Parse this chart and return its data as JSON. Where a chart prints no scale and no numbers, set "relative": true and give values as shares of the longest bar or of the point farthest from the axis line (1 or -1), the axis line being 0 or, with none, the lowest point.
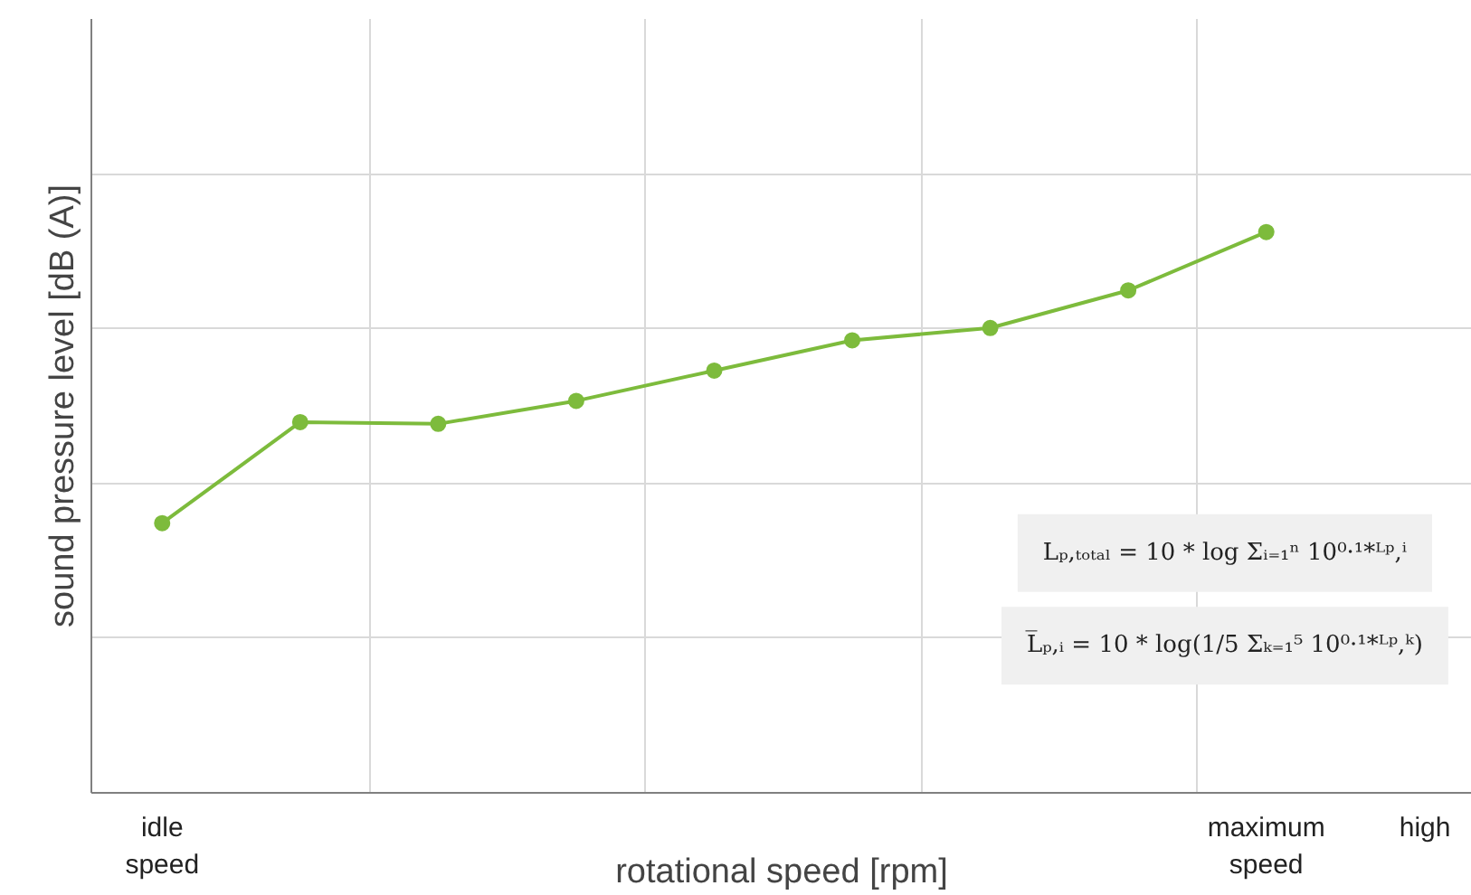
{
  "chart_data": {
    "type": "line",
    "relative": true,
    "xlabel": "rotational speed [rpm]",
    "ylabel": "sound pressure level [dB (A)]",
    "categories": [
      "idle\nspeed",
      null,
      null,
      null,
      null,
      null,
      null,
      null,
      "maximum\nspeed"
    ],
    "series": [
      {
        "color": "#7dbb3c",
        "values": [
          0.481,
          0.661,
          0.658,
          0.699,
          0.753,
          0.807,
          0.829,
          0.896,
          1.0
        ]
      }
    ],
    "marker": "circle",
    "grid": true,
    "annotations": [
      "high",
      "Lₚ,ₜₒₜₐₗ = 10 * log Σᵢ₌₁ⁿ 10⁰·¹*ᴸᵖ,ⁱ",
      "L̅ₚ,ᵢ = 10 * log(1/5 Σₖ₌₁⁵ 10⁰·¹*ᴸᵖ,ᵏ)"
    ]
  }
}
